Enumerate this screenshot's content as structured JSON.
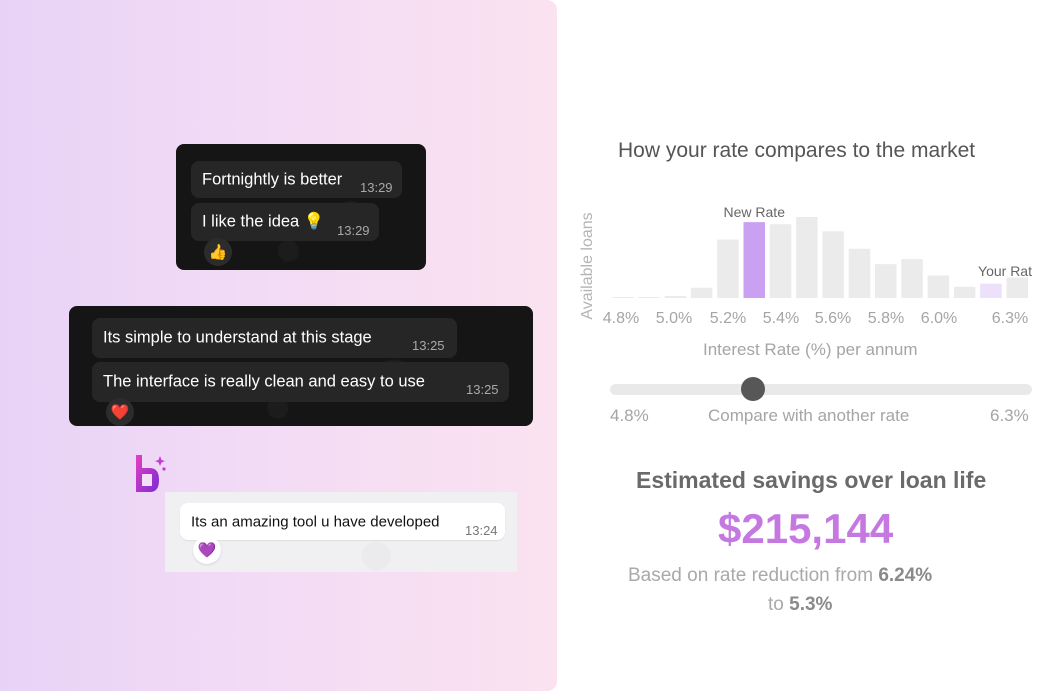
{
  "chat_dark_1": {
    "messages": [
      {
        "text": "Fortnightly is better",
        "time": "13:29"
      },
      {
        "text": "I like the idea 💡",
        "time": "13:29"
      }
    ],
    "reaction": "👍"
  },
  "chat_dark_2": {
    "messages": [
      {
        "text": "Its simple to understand at this stage",
        "time": "13:25"
      },
      {
        "text": "The interface is really clean and easy to use",
        "time": "13:25"
      }
    ],
    "reaction": "❤️"
  },
  "chat_light": {
    "message": {
      "text": "Its an amazing tool u have developed",
      "time": "13:24"
    },
    "reaction": "💜"
  },
  "colors": {
    "accent": "#c478e0",
    "bar_highlight": "#c9a0f2",
    "bar_highlight_light": "#ece0fb",
    "bar_default": "#ebebeb"
  },
  "chart_data": {
    "type": "bar",
    "title": "How your rate compares to the market",
    "ylabel": "Available loans",
    "xlabel": "Interest Rate (%) per annum",
    "tick_labels": [
      "4.8%",
      "5.0%",
      "5.2%",
      "5.4%",
      "5.6%",
      "5.8%",
      "6.0%",
      "6.3%"
    ],
    "x_start": 4.8,
    "bin_width": 0.1,
    "values": [
      0.5,
      0.5,
      2,
      10,
      57,
      74,
      72,
      79,
      65,
      48,
      33,
      38,
      22,
      11,
      14,
      20
    ],
    "ylim": [
      0,
      80
    ],
    "highlights": [
      {
        "label": "New Rate",
        "index": 5
      },
      {
        "label": "Your Rat",
        "index": 14
      }
    ]
  },
  "slider": {
    "min_label": "4.8%",
    "max_label": "6.3%",
    "label": "Compare with another rate",
    "value_fraction": 0.34
  },
  "savings": {
    "title": "Estimated savings over loan life",
    "amount": "$215,144",
    "based_prefix": "Based on rate reduction from",
    "from_rate": "6.24%",
    "to_prefix": "to",
    "to_rate": "5.3%"
  }
}
